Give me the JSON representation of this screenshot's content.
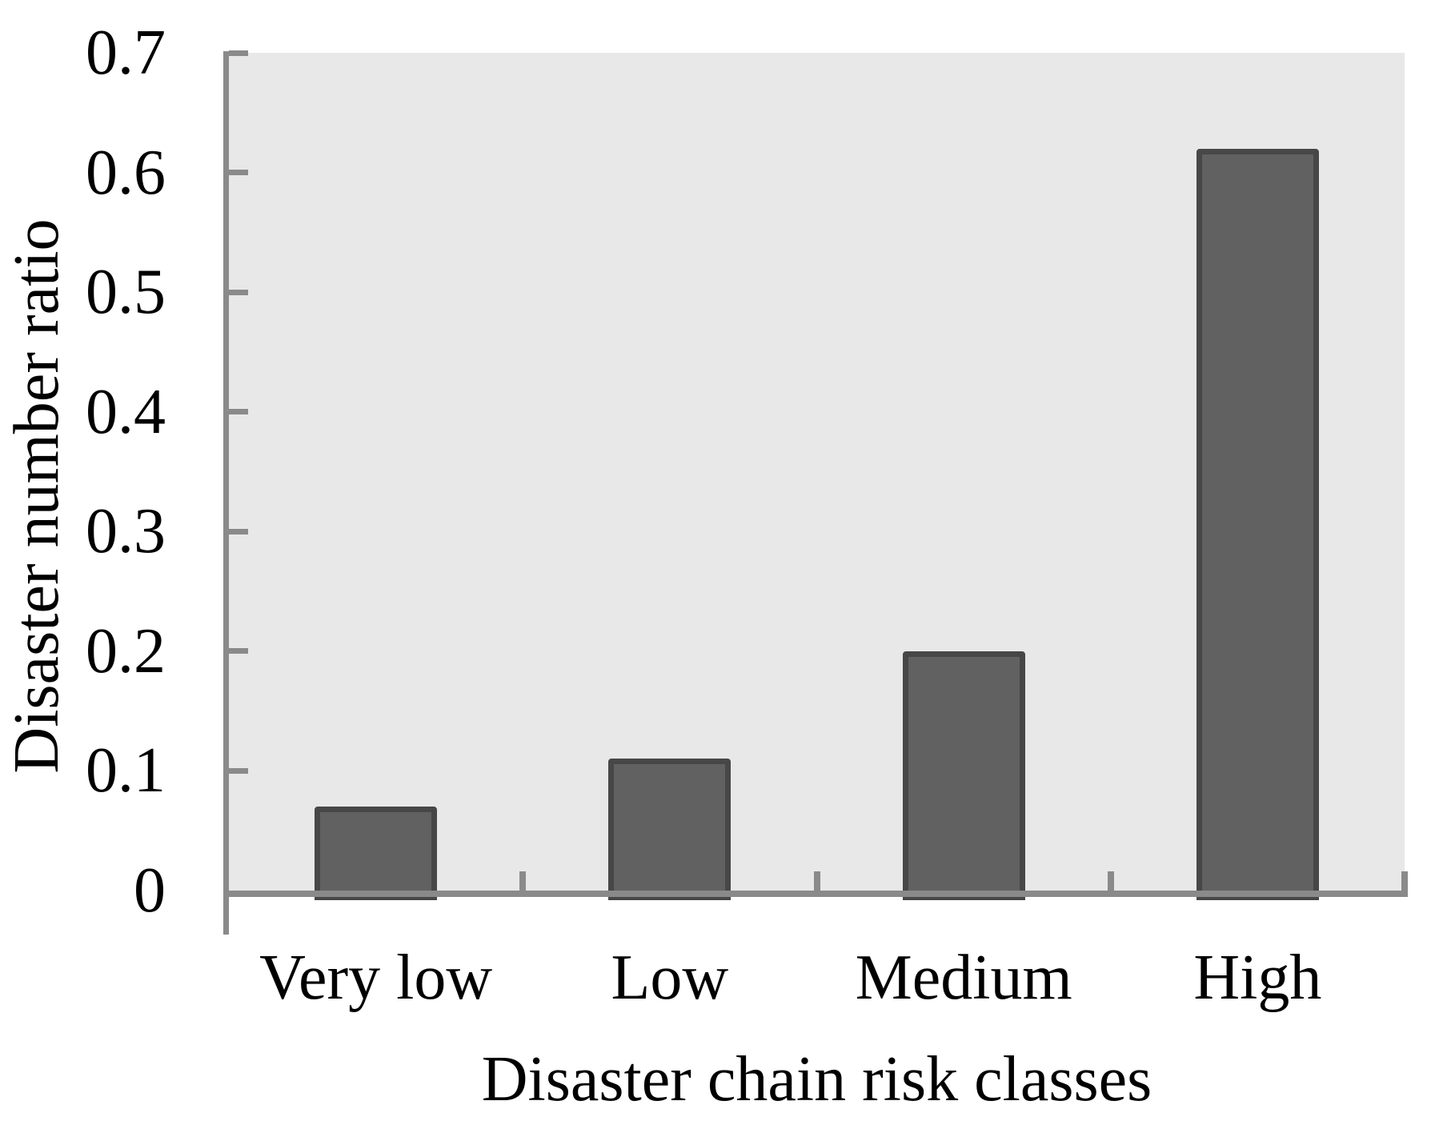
{
  "chart_data": {
    "type": "bar",
    "categories": [
      "Very low",
      "Low",
      "Medium",
      "High"
    ],
    "values": [
      0.07,
      0.11,
      0.2,
      0.62
    ],
    "title": "",
    "xlabel": "Disaster chain risk classes",
    "ylabel": "Disaster number ratio",
    "ylim": [
      0,
      0.7
    ],
    "ytick_step": 0.1,
    "ytick_labels": [
      "0",
      "0.1",
      "0.2",
      "0.3",
      "0.4",
      "0.5",
      "0.6",
      "0.7"
    ],
    "grid": false,
    "legend": "none",
    "plot_background": "#e8e8e8",
    "page_background": "#ffffff",
    "bar_fill_color": "#616161",
    "bar_stroke_color": "#474747",
    "axis_color": "#8a8a8a",
    "text_color": "#000000"
  }
}
